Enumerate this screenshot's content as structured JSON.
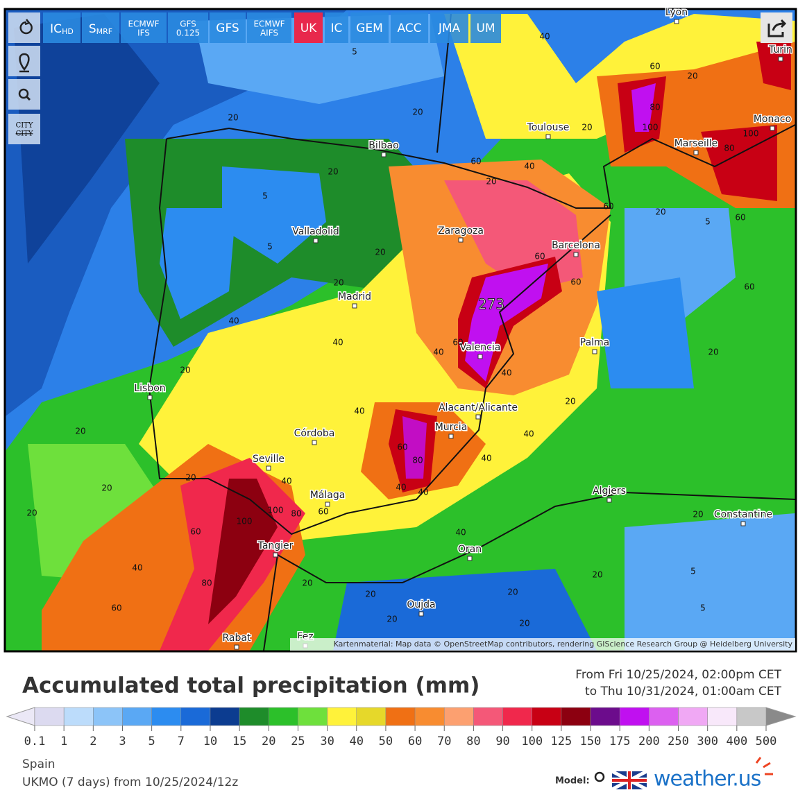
{
  "toolbar": {
    "side": {
      "city": "CITY",
      "city_struck": "CITY"
    },
    "buttons": [
      {
        "text": "IC",
        "sub": "HD"
      },
      {
        "text": "S",
        "sub": "MRF"
      },
      {
        "lines": [
          "ECMWF",
          "IFS"
        ]
      },
      {
        "lines": [
          "GFS",
          "0.125"
        ]
      },
      {
        "lines": [
          "GFS"
        ]
      },
      {
        "lines": [
          "ECMWF",
          "AIFS"
        ]
      },
      {
        "lines": [
          "UK"
        ],
        "active": true
      },
      {
        "lines": [
          "IC"
        ]
      },
      {
        "lines": [
          "GEM"
        ]
      },
      {
        "lines": [
          "ACC"
        ]
      },
      {
        "lines": [
          "JMA"
        ]
      },
      {
        "lines": [
          "UM"
        ]
      }
    ]
  },
  "map": {
    "cities": [
      "Lyon",
      "Turin",
      "Toulouse",
      "Monaco",
      "Marseille",
      "Bilbao",
      "Zaragoza",
      "Barcelona",
      "Valladolid",
      "Madrid",
      "Palma",
      "Valencia",
      "Lisbon",
      "Alacant/Alicante",
      "Murcia",
      "Córdoba",
      "Seville",
      "Málaga",
      "Algiers",
      "Constantine",
      "Tangier",
      "Oran",
      "Oujda",
      "Rabat",
      "Fez"
    ],
    "max_label": "273",
    "contour_labels": [
      "40",
      "5",
      "60",
      "20",
      "20",
      "20",
      "80",
      "100",
      "20",
      "20",
      "60",
      "40",
      "20",
      "100",
      "80",
      "5",
      "60",
      "20",
      "5",
      "60",
      "5",
      "20",
      "60",
      "60",
      "20",
      "60",
      "40",
      "40",
      "60",
      "40",
      "40",
      "20",
      "20",
      "20",
      "40",
      "20",
      "60",
      "40",
      "80",
      "40",
      "20",
      "20",
      "40",
      "40",
      "40",
      "20",
      "100",
      "100",
      "80",
      "60",
      "20",
      "60",
      "40",
      "40",
      "20",
      "80",
      "5",
      "20",
      "20",
      "20",
      "60",
      "20",
      "5",
      "20"
    ],
    "attribution": "Kartenmaterial: Map data © OpenStreetMap contributors, rendering GIScience Research Group @ Heidelberg University"
  },
  "legend": {
    "title": "Accumulated total precipitation (mm)",
    "period": [
      "From Fri 10/25/2024, 02:00pm CET",
      "to Thu 10/31/2024, 01:00am CET"
    ],
    "ticks": [
      0.1,
      1,
      2,
      3,
      5,
      7,
      10,
      15,
      20,
      25,
      30,
      40,
      50,
      60,
      70,
      80,
      90,
      100,
      125,
      150,
      175,
      200,
      250,
      300,
      400,
      500
    ],
    "colors": [
      "#dcdaf0",
      "#bcdcfb",
      "#8cc4f8",
      "#5aa8f4",
      "#2c8cf0",
      "#1a6ad8",
      "#0c3c90",
      "#1e8c2a",
      "#2cc02a",
      "#6ee03c",
      "#fff23a",
      "#e6d82a",
      "#f07014",
      "#f88c30",
      "#fca070",
      "#f45878",
      "#f0284c",
      "#c80014",
      "#8c0010",
      "#6c0c8c",
      "#c010f0",
      "#dc60f0",
      "#f0a8f4",
      "#f8e8fa",
      "#c8c8c8"
    ],
    "under_color": "#ebe8f6",
    "over_color": "#8a8a8a"
  },
  "footer": {
    "region": "Spain",
    "model_run": "UKMO (7 days) from 10/25/2024/12z",
    "model_label": "Model:",
    "brand": "weather.us"
  }
}
